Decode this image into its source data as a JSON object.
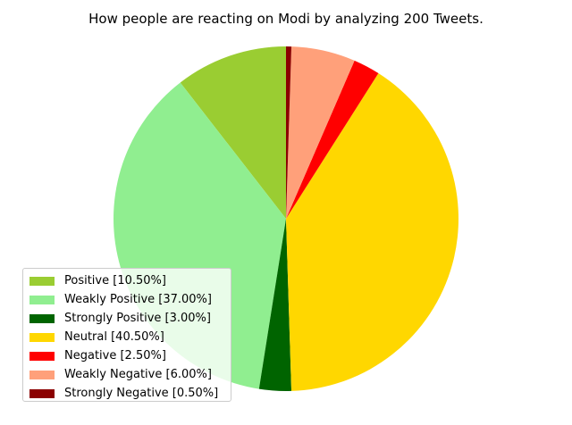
{
  "chart_data": {
    "type": "pie",
    "title": "How people are reacting on Modi by analyzing 200 Tweets.",
    "start_angle_deg": 90,
    "direction": "counterclockwise",
    "legend_placement": "lower-left",
    "slices": [
      {
        "label": "Positive [10.50%]",
        "value": 10.5,
        "color": "#9acd32"
      },
      {
        "label": "Weakly Positive [37.00%]",
        "value": 37.0,
        "color": "#90ee90"
      },
      {
        "label": "Strongly Positive [3.00%]",
        "value": 3.0,
        "color": "#006400"
      },
      {
        "label": "Neutral [40.50%]",
        "value": 40.5,
        "color": "#ffd700"
      },
      {
        "label": "Negative [2.50%]",
        "value": 2.5,
        "color": "#ff0000"
      },
      {
        "label": "Weakly Negative [6.00%]",
        "value": 6.0,
        "color": "#ffa07a"
      },
      {
        "label": "Strongly Negative [0.50%]",
        "value": 0.5,
        "color": "#8b0000"
      }
    ]
  }
}
